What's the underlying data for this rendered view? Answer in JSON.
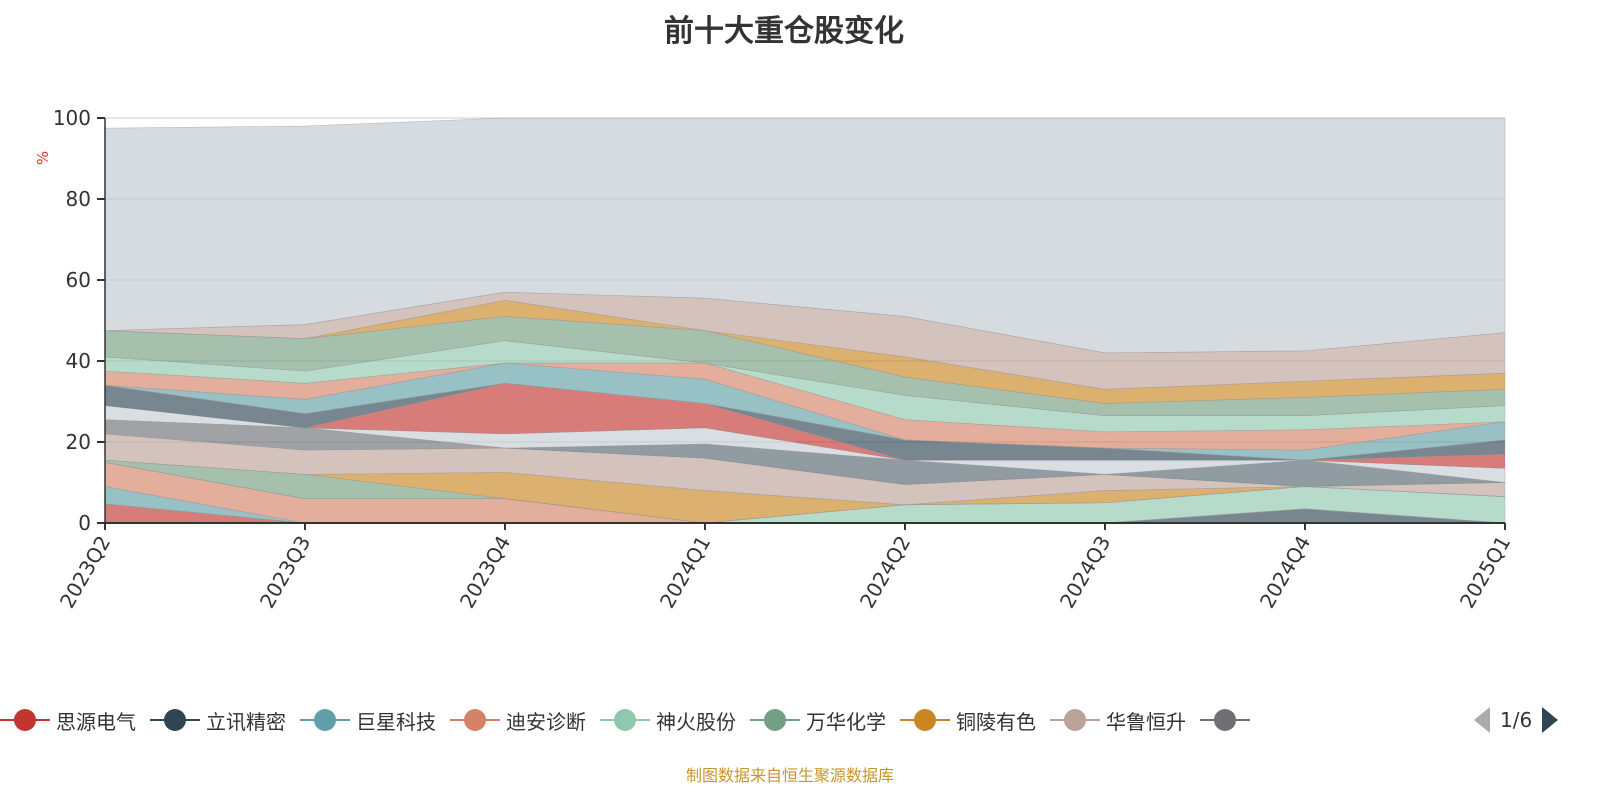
{
  "title": "前十大重仓股变化",
  "footer": "制图数据来自恒生聚源数据库",
  "legend_pager": "1/6",
  "chart_data": {
    "type": "area",
    "stacked": true,
    "title": "前十大重仓股变化",
    "ylabel": "%",
    "ylim": [
      0,
      100
    ],
    "yticks": [
      0,
      20,
      40,
      60,
      80,
      100
    ],
    "categories": [
      "2023Q2",
      "2023Q3",
      "2023Q4",
      "2024Q1",
      "2024Q2",
      "2024Q3",
      "2024Q4",
      "2025Q1"
    ],
    "palette": [
      "#c23531",
      "#2f4554",
      "#61a0a8",
      "#d48265",
      "#91c7ae",
      "#749f83",
      "#ca8622",
      "#bda29a",
      "#6e7074",
      "#546570",
      "#c4ccd3"
    ],
    "series": [
      {
        "name": "思源电气",
        "values": [
          4.7,
          0,
          0,
          0,
          0,
          0,
          0,
          0
        ]
      },
      {
        "name": "立讯精密",
        "values": [
          0,
          0,
          0,
          0,
          0,
          0,
          3.5,
          0
        ]
      },
      {
        "name": "巨星科技",
        "values": [
          4.3,
          0,
          0,
          0,
          0,
          0,
          0,
          0
        ]
      },
      {
        "name": "迪安诊断",
        "values": [
          6,
          6,
          6,
          0,
          0,
          0,
          0,
          0
        ]
      },
      {
        "name": "神火股份",
        "values": [
          0,
          0,
          0,
          0,
          4.5,
          5,
          5.5,
          6.5
        ]
      },
      {
        "name": "万华化学",
        "values": [
          0.5,
          6,
          0,
          0,
          0,
          0,
          0,
          0
        ]
      },
      {
        "name": "铜陵有色",
        "values": [
          0,
          0,
          6.5,
          8,
          0,
          3,
          0,
          0
        ]
      },
      {
        "name": "华鲁恒升",
        "values": [
          6.5,
          6,
          6,
          8,
          5,
          4,
          0,
          3.5
        ]
      },
      {
        "name": "",
        "values": [
          3.5,
          5.5,
          0,
          0,
          0,
          0,
          0,
          0
        ]
      },
      {
        "values": [
          0,
          0,
          0,
          3.5,
          6,
          0,
          6.5,
          0
        ]
      },
      {
        "values": [
          3.5,
          0,
          3.5,
          4,
          0,
          3.5,
          0,
          3.5
        ]
      },
      {
        "values": [
          0,
          0,
          12.5,
          6,
          0,
          0,
          0,
          3.5
        ]
      },
      {
        "values": [
          5,
          3.5,
          0,
          0,
          5,
          3,
          0,
          3.5
        ]
      },
      {
        "values": [
          0,
          3.5,
          5,
          6,
          0,
          0,
          2.5,
          4.5
        ]
      },
      {
        "values": [
          3.5,
          4,
          0,
          4,
          5,
          4,
          5,
          0
        ]
      },
      {
        "values": [
          3.5,
          3,
          5.5,
          0,
          6,
          4,
          3.5,
          4
        ]
      },
      {
        "values": [
          6.5,
          8,
          6,
          8,
          4.5,
          3,
          4.5,
          4
        ]
      },
      {
        "values": [
          0,
          0,
          4,
          0,
          5,
          3.5,
          4,
          4
        ]
      },
      {
        "values": [
          0,
          3.5,
          2,
          8,
          10,
          9,
          7.5,
          10
        ]
      },
      {
        "values": [
          50,
          49,
          43,
          44.5,
          49,
          58,
          57.5,
          53
        ],
        "color": "#c4ccd3"
      }
    ]
  }
}
